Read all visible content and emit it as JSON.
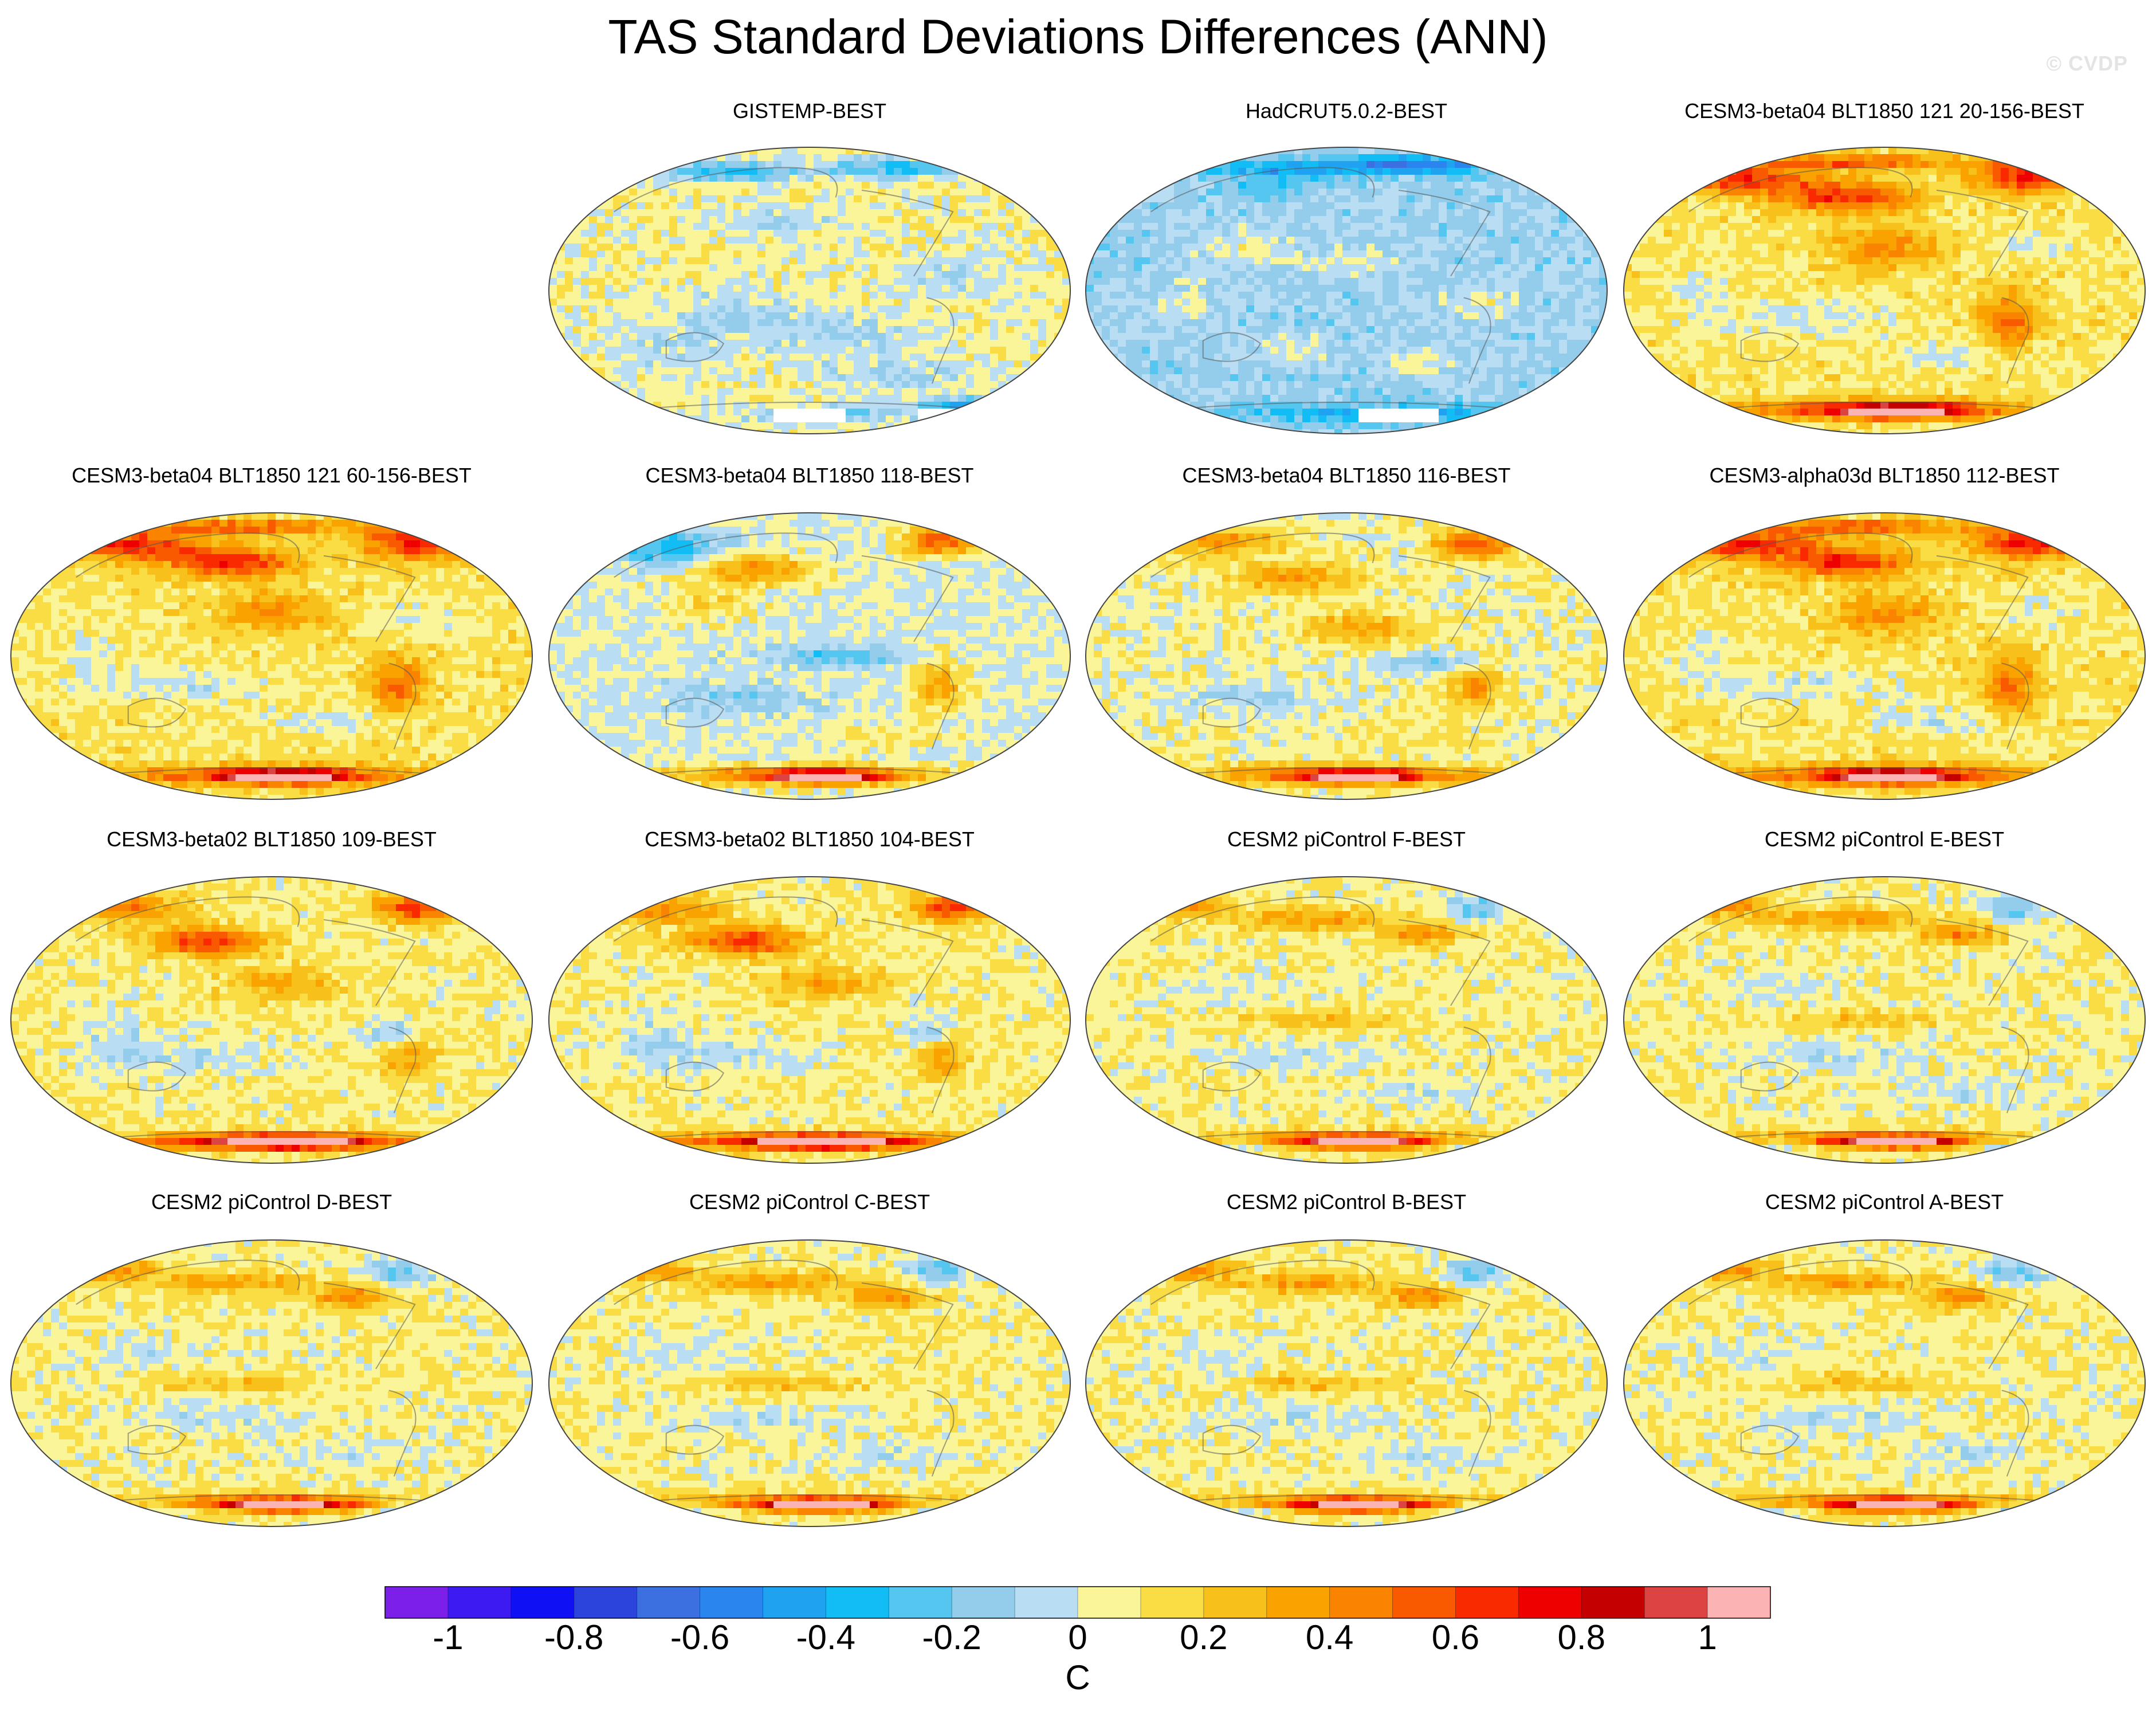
{
  "title": "TAS Standard Deviations Differences (ANN)",
  "watermark": "© CVDP",
  "chart_data": {
    "type": "heatmap",
    "variable": "TAS",
    "statistic": "Standard Deviations Differences",
    "season": "ANN",
    "projection": "Robinson (global, Pacific-centred)",
    "panels": [
      {
        "label": "GISTEMP-BEST",
        "row": 0,
        "col": 1,
        "pattern": "obs_gistemp"
      },
      {
        "label": "HadCRUT5.0.2-BEST",
        "row": 0,
        "col": 2,
        "pattern": "obs_hadcrut"
      },
      {
        "label": "CESM3-beta04 BLT1850 121 20-156-BEST",
        "row": 0,
        "col": 3,
        "pattern": "strong_pos"
      },
      {
        "label": "CESM3-beta04 BLT1850 121 60-156-BEST",
        "row": 1,
        "col": 0,
        "pattern": "strong_pos"
      },
      {
        "label": "CESM3-beta04 BLT1850 118-BEST",
        "row": 1,
        "col": 1,
        "pattern": "mixed_blue"
      },
      {
        "label": "CESM3-beta04 BLT1850 116-BEST",
        "row": 1,
        "col": 2,
        "pattern": "mixed"
      },
      {
        "label": "CESM3-alpha03d BLT1850 112-BEST",
        "row": 1,
        "col": 3,
        "pattern": "strong_pos"
      },
      {
        "label": "CESM3-beta02 BLT1850 109-BEST",
        "row": 2,
        "col": 0,
        "pattern": "mixed_pos"
      },
      {
        "label": "CESM3-beta02 BLT1850 104-BEST",
        "row": 2,
        "col": 1,
        "pattern": "mixed_pos"
      },
      {
        "label": "CESM2 piControl F-BEST",
        "row": 2,
        "col": 2,
        "pattern": "cesm2"
      },
      {
        "label": "CESM2 piControl E-BEST",
        "row": 2,
        "col": 3,
        "pattern": "cesm2"
      },
      {
        "label": "CESM2 piControl D-BEST",
        "row": 3,
        "col": 0,
        "pattern": "cesm2"
      },
      {
        "label": "CESM2 piControl C-BEST",
        "row": 3,
        "col": 1,
        "pattern": "cesm2"
      },
      {
        "label": "CESM2 piControl B-BEST",
        "row": 3,
        "col": 2,
        "pattern": "cesm2"
      },
      {
        "label": "CESM2 piControl A-BEST",
        "row": 3,
        "col": 3,
        "pattern": "cesm2"
      }
    ],
    "colorbar": {
      "units": "C",
      "levels": [
        -1.0,
        -0.9,
        -0.8,
        -0.7,
        -0.6,
        -0.5,
        -0.4,
        -0.3,
        -0.2,
        -0.1,
        0.0,
        0.1,
        0.2,
        0.3,
        0.4,
        0.5,
        0.6,
        0.7,
        0.8,
        0.9,
        1.0
      ],
      "colors": [
        "#7c1fe8",
        "#3d1af2",
        "#1010f4",
        "#2c44dc",
        "#3c6fe0",
        "#2a86ee",
        "#1fa2f0",
        "#12bcf5",
        "#55c6f0",
        "#94cdec",
        "#b9def3",
        "#fbf59a",
        "#fadd44",
        "#f8c01a",
        "#f9a200",
        "#fa8400",
        "#f95a00",
        "#fa2a00",
        "#ee0000",
        "#c40000",
        "#dc4444",
        "#fbb3b3"
      ],
      "tick_labels": [
        "-1",
        "-0.8",
        "-0.6",
        "-0.4",
        "-0.2",
        "0",
        "0.2",
        "0.4",
        "0.6",
        "0.8",
        "1"
      ],
      "tick_values": [
        -1.0,
        -0.8,
        -0.6,
        -0.4,
        -0.2,
        0.0,
        0.2,
        0.4,
        0.6,
        0.8,
        1.0
      ]
    }
  }
}
